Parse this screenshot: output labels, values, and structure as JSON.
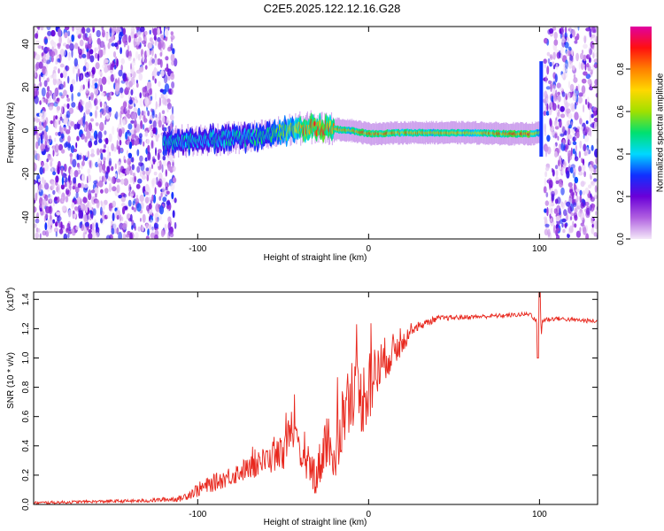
{
  "figure": {
    "title": "C2E5.2025.122.12.16.G28"
  },
  "chart_data": [
    {
      "type": "heatmap",
      "title": "",
      "xlabel": "Height of straight line (km)",
      "ylabel": "Frequency (Hz)",
      "xlim": [
        -196,
        134
      ],
      "ylim": [
        -50,
        48
      ],
      "x_ticks": [
        "-100",
        "0",
        "100"
      ],
      "x_tick_values": [
        -100,
        0,
        100
      ],
      "y_ticks": [
        "-40",
        "-20",
        "0",
        "20",
        "40"
      ],
      "y_tick_values": [
        -40,
        -20,
        0,
        20,
        40
      ],
      "colorbar": {
        "label": "Normalized spectral amplitude",
        "range": [
          0,
          1
        ],
        "ticks": [
          "0.0",
          "0.2",
          "0.4",
          "0.6",
          "0.8"
        ],
        "tick_values": [
          0.0,
          0.2,
          0.4,
          0.6,
          0.8
        ],
        "colors": [
          "#f4e8f8",
          "#b060e0",
          "#6a00d8",
          "#1030ff",
          "#00d8ff",
          "#00e070",
          "#a0e000",
          "#ffd800",
          "#ff8000",
          "#ff1010",
          "#e000a0"
        ]
      },
      "noise_regions": [
        {
          "x_range": [
            -196,
            -113
          ],
          "level": "medium"
        },
        {
          "x_range": [
            103,
            134
          ],
          "level": "medium"
        }
      ],
      "signal_ridge": {
        "x": [
          -120,
          -100,
          -80,
          -60,
          -45,
          -35,
          -25,
          -10,
          0,
          20,
          40,
          60,
          80,
          95,
          100
        ],
        "y": [
          -5,
          -4.5,
          -3.5,
          -2.5,
          0.5,
          1.5,
          1,
          0,
          -1.5,
          -1,
          -1,
          -1,
          -1.5,
          -1.5,
          -1
        ],
        "amplitude": [
          0.45,
          0.45,
          0.45,
          0.5,
          0.65,
          0.9,
          0.85,
          0.75,
          0.85,
          0.8,
          0.75,
          0.75,
          0.85,
          0.9,
          0.6
        ]
      },
      "edge_spike": {
        "x": 101,
        "y_range": [
          -12,
          32
        ]
      }
    },
    {
      "type": "line",
      "title": "",
      "xlabel": "Height of straight line (km)",
      "ylabel": "SNR (10 * v/v)",
      "y_multiplier_label": "(x10",
      "y_multiplier_exponent": "4",
      "xlim": [
        -196,
        134
      ],
      "ylim": [
        0,
        1.45
      ],
      "x_ticks": [
        "-100",
        "0",
        "100"
      ],
      "x_tick_values": [
        -100,
        0,
        100
      ],
      "y_ticks": [
        "0.0",
        "0.2",
        "0.4",
        "0.6",
        "0.8",
        "1.0",
        "1.2",
        "1.4"
      ],
      "y_tick_values": [
        0.0,
        0.2,
        0.4,
        0.6,
        0.8,
        1.0,
        1.2,
        1.4
      ],
      "grid": false,
      "series_color": "#e8281e",
      "x": [
        -196,
        -160,
        -130,
        -110,
        -100,
        -90,
        -80,
        -70,
        -60,
        -50,
        -45,
        -40,
        -35,
        -30,
        -25,
        -20,
        -15,
        -10,
        -5,
        0,
        5,
        10,
        15,
        20,
        25,
        30,
        40,
        60,
        80,
        95,
        98,
        100,
        102,
        110,
        120,
        134
      ],
      "y": [
        0.01,
        0.02,
        0.025,
        0.04,
        0.1,
        0.15,
        0.2,
        0.25,
        0.3,
        0.35,
        0.55,
        0.3,
        0.25,
        0.2,
        0.45,
        0.35,
        0.6,
        0.8,
        0.7,
        0.8,
        0.9,
        1.0,
        1.05,
        1.1,
        1.2,
        1.22,
        1.27,
        1.28,
        1.29,
        1.3,
        1.25,
        1.1,
        1.26,
        1.27,
        1.26,
        1.25
      ],
      "noise_amplitude": [
        0.01,
        0.01,
        0.012,
        0.02,
        0.05,
        0.06,
        0.07,
        0.08,
        0.1,
        0.12,
        0.12,
        0.12,
        0.12,
        0.15,
        0.2,
        0.25,
        0.25,
        0.25,
        0.25,
        0.25,
        0.2,
        0.15,
        0.12,
        0.08,
        0.04,
        0.03,
        0.02,
        0.015,
        0.015,
        0.015,
        0.02,
        0.2,
        0.02,
        0.015,
        0.015,
        0.015
      ]
    }
  ]
}
